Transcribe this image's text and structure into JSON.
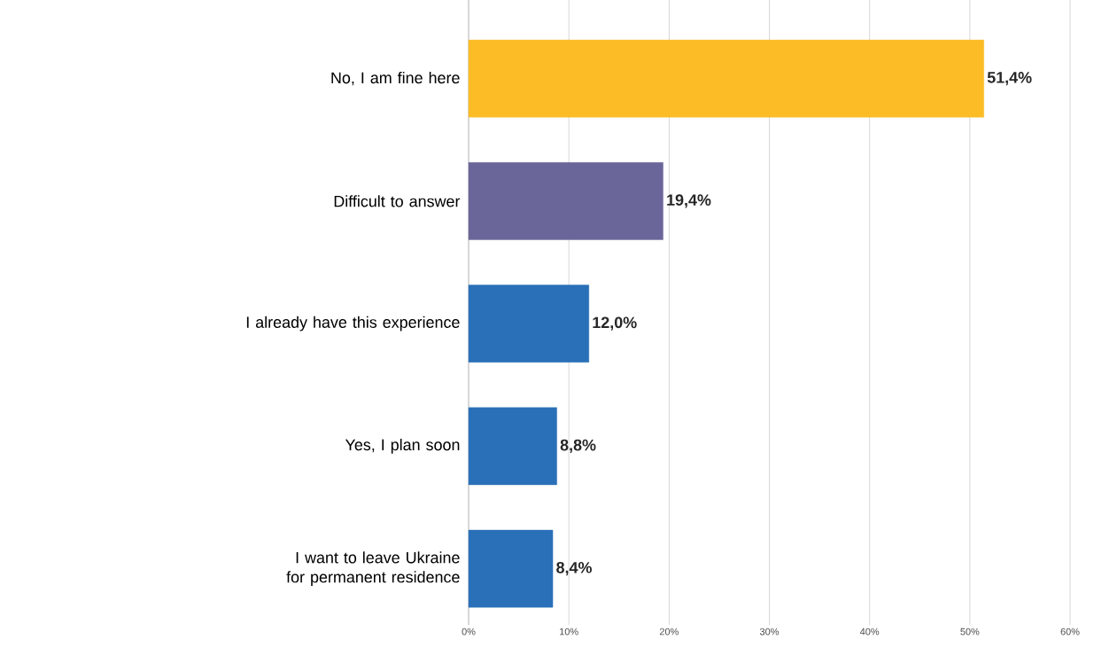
{
  "chart_data": {
    "type": "bar",
    "orientation": "horizontal",
    "categories": [
      "No, I am fine here",
      "Difficult to answer",
      "I already have this experience",
      "Yes, I plan soon",
      "I want to leave Ukraine for permanent residence"
    ],
    "values": [
      51.4,
      19.4,
      12.0,
      8.8,
      8.4
    ],
    "value_labels": [
      "51,4%",
      "19,4%",
      "12,0%",
      "8,8%",
      "8,4%"
    ],
    "colors": [
      "#fbbc25",
      "#6a6699",
      "#2a70b8",
      "#2a70b8",
      "#2a70b8"
    ],
    "xlim": [
      0,
      60
    ],
    "xticks": [
      {
        "value": 0,
        "label": "0%"
      },
      {
        "value": 10,
        "label": "10%"
      },
      {
        "value": 20,
        "label": "20%"
      },
      {
        "value": 30,
        "label": "30%"
      },
      {
        "value": 40,
        "label": "40%"
      },
      {
        "value": 50,
        "label": "50%"
      },
      {
        "value": 60,
        "label": "60%"
      }
    ],
    "grid": "x"
  }
}
